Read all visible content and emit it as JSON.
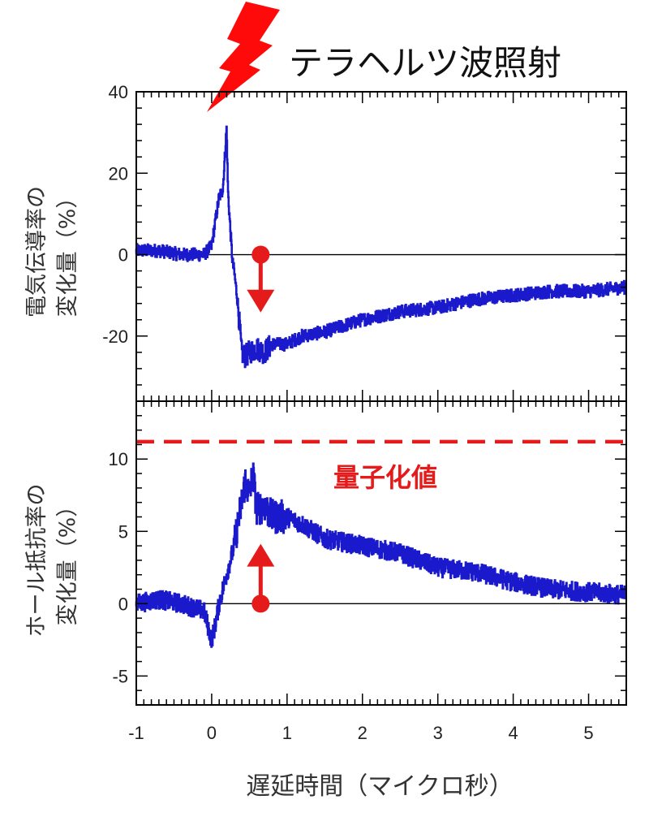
{
  "title": "テラヘルツ波照射",
  "xlabel": "遅延時間（マイクロ秒）",
  "colors": {
    "trace": "#1a1acc",
    "accent": "#e51a1a",
    "axis": "#000000"
  },
  "icons": {
    "pulse": "lightning-bolt-icon"
  },
  "chart_data": [
    {
      "type": "line",
      "name": "conductivity",
      "ylabel_line1": "電気伝導率の",
      "ylabel_line2": "変化量（%）",
      "xlim": [
        -1,
        5.5
      ],
      "ylim": [
        -36,
        40
      ],
      "xticks": [
        -1,
        0,
        1,
        2,
        3,
        4,
        5
      ],
      "yticks": [
        40,
        20,
        0,
        -20
      ],
      "ytick_labels": [
        "40",
        "20",
        "0",
        "-20"
      ],
      "zero_line": 0,
      "series": [
        {
          "name": "conductivity change",
          "x": [
            -1.0,
            -0.7,
            -0.4,
            -0.1,
            0.0,
            0.05,
            0.1,
            0.15,
            0.18,
            0.2,
            0.22,
            0.25,
            0.28,
            0.3,
            0.35,
            0.4,
            0.45,
            0.5,
            0.6,
            0.7,
            0.8,
            1.0,
            1.2,
            1.5,
            2.0,
            2.5,
            3.0,
            3.5,
            4.0,
            4.5,
            5.0,
            5.5
          ],
          "y": [
            1,
            1,
            0,
            0,
            2,
            8,
            14,
            16,
            25,
            31,
            15,
            6,
            -2,
            -4,
            -12,
            -24,
            -25,
            -24,
            -23,
            -24,
            -22,
            -22,
            -20,
            -19,
            -16,
            -14,
            -13,
            -11,
            -10,
            -9,
            -9,
            -8
          ]
        }
      ],
      "marker": {
        "x": 0.65,
        "y": 0,
        "arrow_to_y": -13,
        "direction": "down"
      }
    },
    {
      "type": "line",
      "name": "hall",
      "ylabel_line1": "ホール抵抗率の",
      "ylabel_line2": "変化量（%）",
      "xlim": [
        -1,
        5.5
      ],
      "ylim": [
        -7,
        14
      ],
      "xticks": [
        -1,
        0,
        1,
        2,
        3,
        4,
        5
      ],
      "xtick_labels": [
        "-1",
        "0",
        "1",
        "2",
        "3",
        "4",
        "5"
      ],
      "yticks": [
        10,
        5,
        0,
        -5
      ],
      "ytick_labels": [
        "10",
        "5",
        "0",
        "-5"
      ],
      "zero_line": 0,
      "quantized_value": 11.2,
      "quantized_label": "量子化値",
      "series": [
        {
          "name": "hall resistivity change",
          "x": [
            -1.0,
            -0.7,
            -0.4,
            -0.1,
            0.0,
            0.05,
            0.1,
            0.2,
            0.3,
            0.4,
            0.45,
            0.5,
            0.55,
            0.6,
            0.7,
            0.8,
            1.0,
            1.2,
            1.5,
            2.0,
            2.5,
            3.0,
            3.5,
            4.0,
            4.5,
            5.0,
            5.5
          ],
          "y": [
            0,
            0.3,
            0,
            -0.5,
            -2.5,
            -1.5,
            0,
            2,
            4,
            7,
            8.5,
            7.5,
            9,
            6.5,
            6.8,
            6,
            6,
            5.5,
            4.5,
            4,
            3.5,
            2.5,
            2.2,
            1.5,
            1,
            0.8,
            0.6
          ]
        }
      ],
      "marker": {
        "x": 0.65,
        "y": 0,
        "arrow_to_y": 3.8,
        "direction": "up"
      }
    }
  ]
}
